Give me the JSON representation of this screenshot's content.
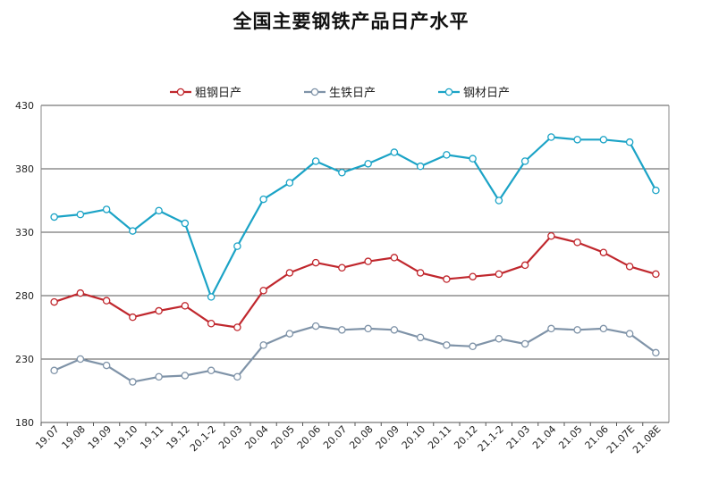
{
  "chart_data": {
    "type": "line",
    "title": "全国主要钢铁产品日产水平",
    "xlabel": "",
    "ylabel": "",
    "ylim": [
      180,
      430
    ],
    "yticks": [
      180,
      230,
      280,
      330,
      380,
      430
    ],
    "grid": true,
    "legend_position": "top",
    "categories": [
      "19.07",
      "19.08",
      "19.09",
      "19.10",
      "19.11",
      "19.12",
      "20.1-2",
      "20.03",
      "20.04",
      "20.05",
      "20.06",
      "20.07",
      "20.08",
      "20.09",
      "20.10",
      "20.11",
      "20.12",
      "21.1-2",
      "21.03",
      "21.04",
      "21.05",
      "21.06",
      "21.07E",
      "21.08E"
    ],
    "series": [
      {
        "name": "粗钢日产",
        "color": "#c0272d",
        "values": [
          275,
          282,
          276,
          263,
          268,
          272,
          258,
          255,
          284,
          298,
          306,
          302,
          307,
          310,
          298,
          293,
          295,
          297,
          304,
          327,
          322,
          314,
          303,
          297
        ]
      },
      {
        "name": "生铁日产",
        "color": "#7f93a8",
        "values": [
          221,
          230,
          225,
          212,
          216,
          217,
          221,
          216,
          241,
          250,
          256,
          253,
          254,
          253,
          247,
          241,
          240,
          246,
          242,
          254,
          253,
          254,
          250,
          235
        ]
      },
      {
        "name": "钢材日产",
        "color": "#1ba3c6",
        "values": [
          342,
          344,
          348,
          331,
          347,
          337,
          279,
          319,
          356,
          369,
          386,
          377,
          384,
          393,
          382,
          391,
          388,
          355,
          386,
          405,
          403,
          403,
          401,
          363
        ]
      }
    ]
  }
}
